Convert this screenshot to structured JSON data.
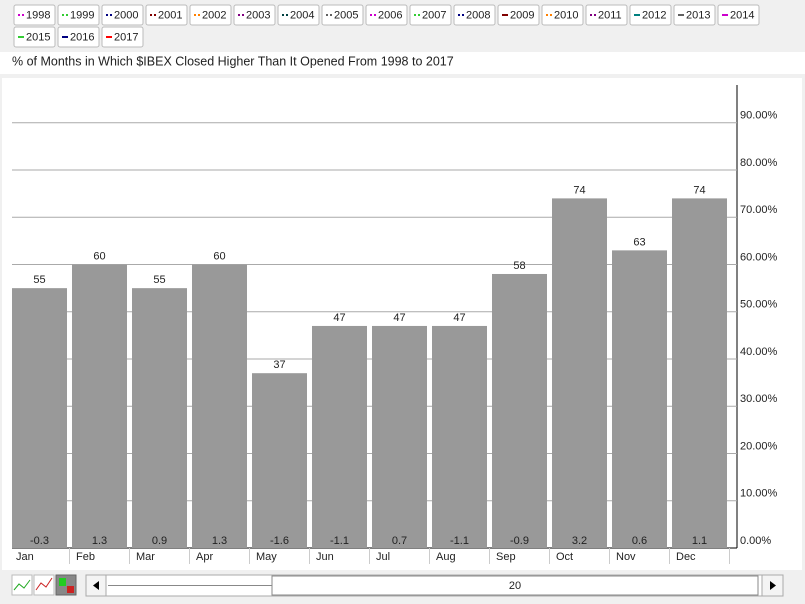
{
  "chart_data": {
    "type": "bar",
    "title": "% of Months in Which $IBEX Closed Higher Than It Opened From 1998 to 2017",
    "legend": [
      {
        "name": "1998",
        "color": "#cc00cc"
      },
      {
        "name": "1999",
        "color": "#33cc33"
      },
      {
        "name": "2000",
        "color": "#000080"
      },
      {
        "name": "2001",
        "color": "#800000"
      },
      {
        "name": "2002",
        "color": "#ff8000"
      },
      {
        "name": "2003",
        "color": "#800080"
      },
      {
        "name": "2004",
        "color": "#004040"
      },
      {
        "name": "2005",
        "color": "#606060"
      },
      {
        "name": "2006",
        "color": "#cc00cc"
      },
      {
        "name": "2007",
        "color": "#33cc33"
      },
      {
        "name": "2008",
        "color": "#000080"
      },
      {
        "name": "2009",
        "color": "#800000"
      },
      {
        "name": "2010",
        "color": "#ff8000"
      },
      {
        "name": "2011",
        "color": "#800080"
      },
      {
        "name": "2012",
        "color": "#008080"
      },
      {
        "name": "2013",
        "color": "#606060"
      },
      {
        "name": "2014",
        "color": "#cc00cc"
      },
      {
        "name": "2015",
        "color": "#33cc33"
      },
      {
        "name": "2016",
        "color": "#000080"
      },
      {
        "name": "2017",
        "color": "#ff0000"
      }
    ],
    "categories": [
      "Jan",
      "Feb",
      "Mar",
      "Apr",
      "May",
      "Jun",
      "Jul",
      "Aug",
      "Sep",
      "Oct",
      "Nov",
      "Dec"
    ],
    "values": [
      55,
      60,
      55,
      60,
      37,
      47,
      47,
      47,
      58,
      74,
      63,
      74
    ],
    "avg_change": [
      -0.3,
      1.3,
      0.9,
      1.3,
      -1.6,
      -1.1,
      0.7,
      -1.1,
      -0.9,
      3.2,
      0.6,
      1.1
    ],
    "color": "#999999",
    "ylim": [
      0,
      98
    ],
    "yticks": [
      {
        "value": 0,
        "label": "0.00%"
      },
      {
        "value": 10,
        "label": "10.00%"
      },
      {
        "value": 20,
        "label": "20.00%"
      },
      {
        "value": 30,
        "label": "30.00%"
      },
      {
        "value": 40,
        "label": "40.00%"
      },
      {
        "value": 50,
        "label": "50.00%"
      },
      {
        "value": 60,
        "label": "60.00%"
      },
      {
        "value": 70,
        "label": "70.00%"
      },
      {
        "value": 80,
        "label": "80.00%"
      },
      {
        "value": 90,
        "label": "90.00%"
      }
    ],
    "grid": true,
    "slider": {
      "value": 20
    }
  }
}
